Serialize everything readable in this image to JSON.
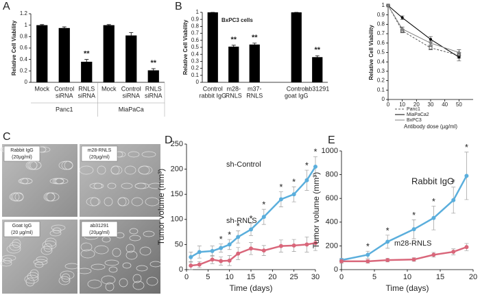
{
  "chart_data": [
    {
      "type": "bar",
      "panel": "A",
      "ylabel": "Relative Cell Viability",
      "categories": [
        [
          "Mock"
        ],
        [
          "Control",
          "siRNA"
        ],
        [
          "RNLS",
          "siRNA"
        ],
        [
          "Mock"
        ],
        [
          "Control",
          "siRNA"
        ],
        [
          "RNLS",
          "siRNA"
        ]
      ],
      "groups": [
        "Panc1",
        "MiaPaCa"
      ],
      "values": [
        1,
        0.95,
        0.36,
        1,
        0.82,
        0.21
      ],
      "errors": [
        0.01,
        0.02,
        0.04,
        0.01,
        0.05,
        0.03
      ],
      "significance": [
        null,
        null,
        "**",
        null,
        null,
        "**"
      ],
      "color": "#000000",
      "ylim": [
        0,
        1.2
      ],
      "yticks": [
        0,
        0.2,
        0.4,
        0.6,
        0.8,
        1,
        1.2
      ]
    },
    {
      "type": "bar",
      "panel": "B",
      "title": "BxPC3 cells",
      "ylabel": "Relative Cell Viability",
      "categories": [
        [
          "Control",
          "rabbit IgG"
        ],
        [
          "m28-",
          "RNLS"
        ],
        [
          "m37-",
          "RNLS"
        ],
        [
          "Control",
          "goat IgG"
        ],
        [
          "ab31291"
        ]
      ],
      "values": [
        1,
        0.51,
        0.54,
        1,
        0.36
      ],
      "errors": [
        0,
        0.02,
        0.02,
        0,
        0.02
      ],
      "significance": [
        null,
        "**",
        "**",
        null,
        "**"
      ],
      "color": "#000000",
      "ylim": [
        0,
        1
      ],
      "yticks": [
        0,
        0.1,
        0.2,
        0.3,
        0.4,
        0.5,
        0.6,
        0.7,
        0.8,
        0.9,
        1
      ]
    },
    {
      "type": "line",
      "xlabel": "Antibody dose (µg/ml)",
      "ylabel": "Relative Cell Viability",
      "x": [
        0,
        10,
        30,
        50
      ],
      "legend": "below",
      "series": [
        {
          "name": "Panc1",
          "color": "#555555",
          "dash": true,
          "marker": "square-open",
          "values": [
            1,
            0.73,
            0.55,
            0.47
          ],
          "errors": [
            0,
            0.02,
            0.02,
            0.03
          ]
        },
        {
          "name": "MiaPaCa2",
          "color": "#000000",
          "dash": false,
          "marker": "circle",
          "values": [
            1,
            0.87,
            0.64,
            0.45
          ],
          "errors": [
            0,
            0.02,
            0.03,
            0.04
          ]
        },
        {
          "name": "BxPC3",
          "color": "#808080",
          "dash": false,
          "marker": "circle",
          "values": [
            1,
            0.75,
            0.6,
            0.5
          ],
          "errors": [
            0,
            0.02,
            0.02,
            0.03
          ]
        }
      ],
      "xlim": [
        0,
        60
      ],
      "xticks": [
        0,
        10,
        20,
        30,
        40,
        50
      ],
      "ylim": [
        0,
        1
      ],
      "yticks": [
        0,
        0.1,
        0.2,
        0.3,
        0.4,
        0.5,
        0.6,
        0.7,
        0.8,
        0.9,
        1
      ]
    },
    {
      "type": "line",
      "panel": "D",
      "xlabel": "Time (days)",
      "ylabel": "Tumor volume (mm³)",
      "legend": "inline",
      "x": [
        1,
        3,
        6,
        8,
        10,
        12,
        15,
        18,
        22,
        25,
        28,
        30
      ],
      "series": [
        {
          "name": "sh-Control",
          "color": "#5aaedc",
          "values": [
            25,
            35,
            37,
            43,
            50,
            65,
            80,
            105,
            140,
            150,
            178,
            205
          ],
          "errors": [
            10,
            12,
            10,
            8,
            10,
            12,
            12,
            15,
            15,
            15,
            20,
            20
          ],
          "significance": [
            null,
            null,
            null,
            "*",
            "*",
            "*",
            "*",
            "*",
            "*",
            "*",
            "*",
            "*"
          ]
        },
        {
          "name": "sh-RNLS",
          "color": "#d9667a",
          "values": [
            8,
            10,
            20,
            17,
            18,
            32,
            42,
            38,
            47,
            48,
            50,
            53
          ],
          "errors": [
            8,
            6,
            8,
            8,
            10,
            12,
            12,
            10,
            12,
            12,
            15,
            15
          ]
        }
      ],
      "xlim": [
        0,
        30
      ],
      "xticks": [
        0,
        5,
        10,
        15,
        20,
        25,
        30
      ],
      "ylim": [
        0,
        250
      ],
      "yticks": [
        0,
        50,
        100,
        150,
        200,
        250
      ]
    },
    {
      "type": "line",
      "panel": "E",
      "xlabel": "Time (days)",
      "ylabel": "Tumor volume (mm³)",
      "legend": "inline",
      "x": [
        0,
        4,
        7,
        11,
        14,
        17,
        19
      ],
      "series": [
        {
          "name": "Rabbit IgG",
          "color": "#5aaedc",
          "values": [
            80,
            125,
            235,
            340,
            435,
            585,
            790
          ],
          "errors": [
            15,
            30,
            55,
            80,
            100,
            110,
            200
          ],
          "significance": [
            null,
            "*",
            "*",
            "*",
            "*",
            "*",
            "*"
          ]
        },
        {
          "name": "m28-RNLS",
          "color": "#d9667a",
          "values": [
            70,
            70,
            80,
            85,
            125,
            150,
            190
          ],
          "errors": [
            15,
            15,
            15,
            15,
            20,
            25,
            30
          ]
        }
      ],
      "xlim": [
        0,
        20
      ],
      "xticks": [
        0,
        5,
        10,
        15,
        20
      ],
      "ylim": [
        0,
        1000
      ],
      "yticks": [
        0,
        200,
        400,
        600,
        800,
        1000
      ]
    }
  ],
  "micrographs": {
    "panel": "C",
    "images": [
      {
        "label": [
          "Rabbit IgG",
          "(20µg/ml)"
        ]
      },
      {
        "label": [
          "m28-RNLS",
          "(20µg/ml)"
        ]
      },
      {
        "label": [
          "Goat IgG",
          "(20 µg/ml)"
        ]
      },
      {
        "label": [
          "ab31291",
          "(20µg/ml)"
        ]
      }
    ]
  }
}
